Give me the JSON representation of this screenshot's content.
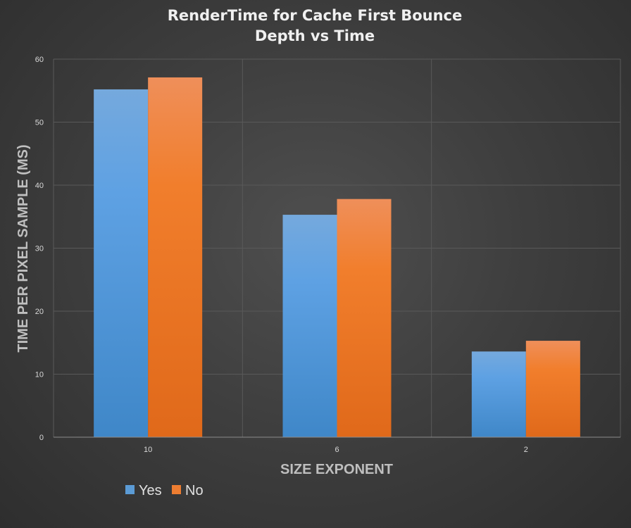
{
  "chart_data": {
    "type": "bar",
    "title_lines": [
      "RenderTime for Cache First Bounce",
      "Depth vs Time"
    ],
    "xlabel": "SIZE EXPONENT",
    "ylabel": "TIME PER PIXEL SAMPLE (MS)",
    "categories": [
      "10",
      "6",
      "2"
    ],
    "series": [
      {
        "name": "Yes",
        "values": [
          55.2,
          35.3,
          13.6
        ],
        "color": "#5b9bd5"
      },
      {
        "name": "No",
        "values": [
          57.1,
          37.8,
          15.3
        ],
        "color": "#ed7d31"
      }
    ],
    "ylim": [
      0,
      60
    ],
    "yticks": [
      0,
      10,
      20,
      30,
      40,
      50,
      60
    ],
    "grid": true,
    "legend_position": "bottom-left"
  }
}
